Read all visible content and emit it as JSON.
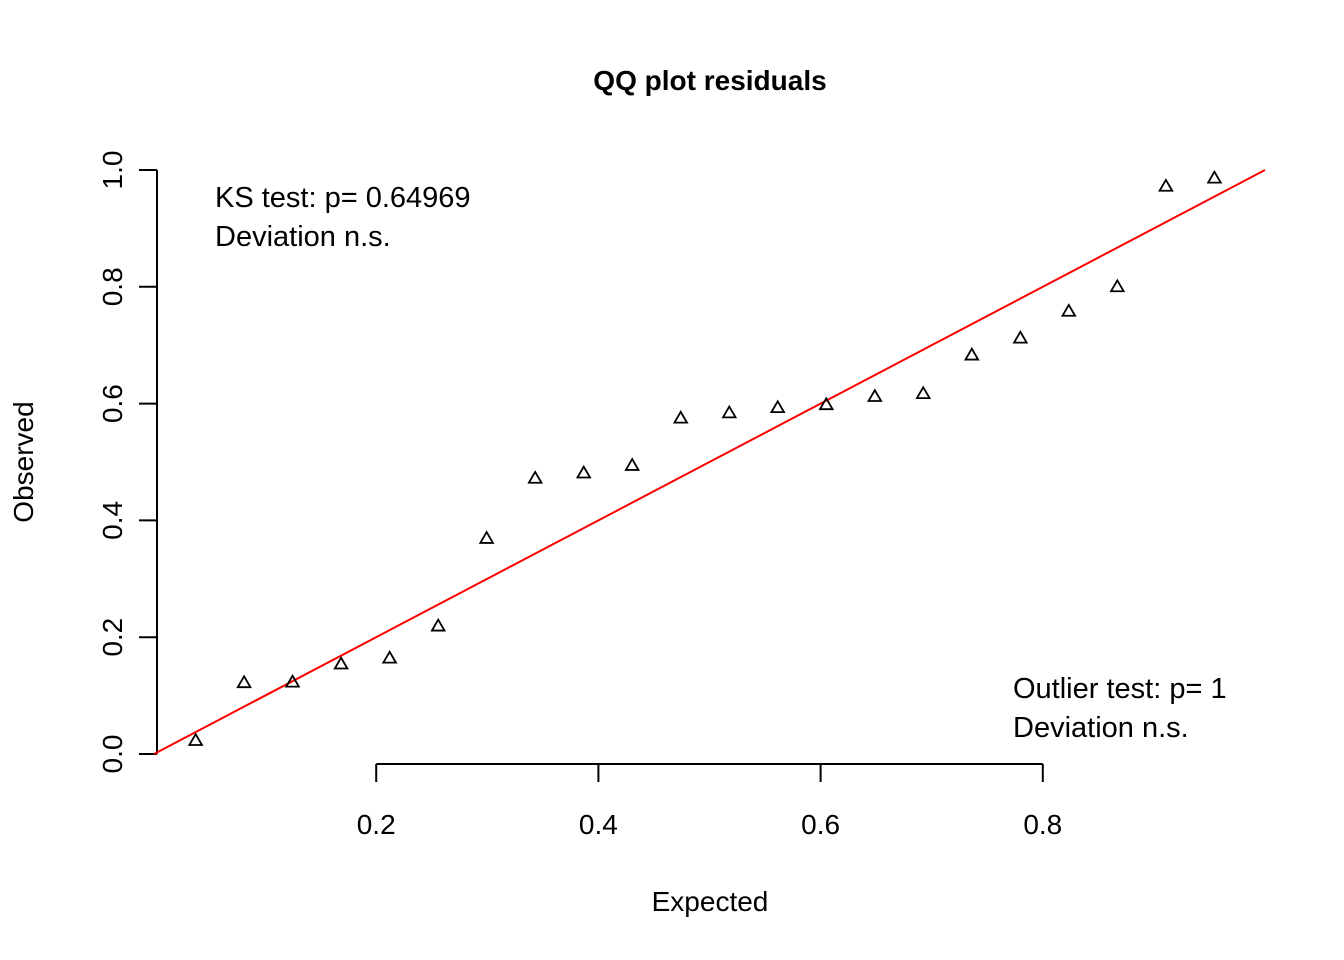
{
  "chart_data": {
    "type": "scatter",
    "title": "QQ plot residuals",
    "xlabel": "Expected",
    "ylabel": "Observed",
    "xlim": [
      0,
      1
    ],
    "ylim": [
      0,
      1
    ],
    "x_ticks": [
      0.2,
      0.4,
      0.6,
      0.8
    ],
    "x_tick_labels": [
      "0.2",
      "0.4",
      "0.6",
      "0.8"
    ],
    "y_ticks": [
      0.0,
      0.2,
      0.4,
      0.6,
      0.8,
      1.0
    ],
    "y_tick_labels": [
      "0.0",
      "0.2",
      "0.4",
      "0.6",
      "0.8",
      "1.0"
    ],
    "grid": false,
    "marker": "triangle",
    "reference_line": {
      "slope": 1,
      "intercept": 0,
      "color": "#ff0000"
    },
    "points": {
      "x": [
        0.0375,
        0.0811,
        0.1247,
        0.1684,
        0.2121,
        0.2558,
        0.2994,
        0.3431,
        0.3868,
        0.4304,
        0.4741,
        0.5178,
        0.5614,
        0.6051,
        0.6488,
        0.6924,
        0.7361,
        0.7798,
        0.8234,
        0.8671,
        0.9108,
        0.9545
      ],
      "y": [
        0.022,
        0.121,
        0.122,
        0.153,
        0.163,
        0.218,
        0.368,
        0.471,
        0.48,
        0.493,
        0.574,
        0.583,
        0.592,
        0.597,
        0.611,
        0.616,
        0.682,
        0.711,
        0.757,
        0.799,
        0.971,
        0.985
      ]
    },
    "annotations": {
      "ks_line1": "KS test: p= 0.64969",
      "ks_line2": "Deviation  n.s.",
      "outlier_line1": "Outlier test: p= 1",
      "outlier_line2": "Deviation  n.s."
    },
    "colors": {
      "points": "#000000",
      "reference": "#ff0000"
    }
  }
}
